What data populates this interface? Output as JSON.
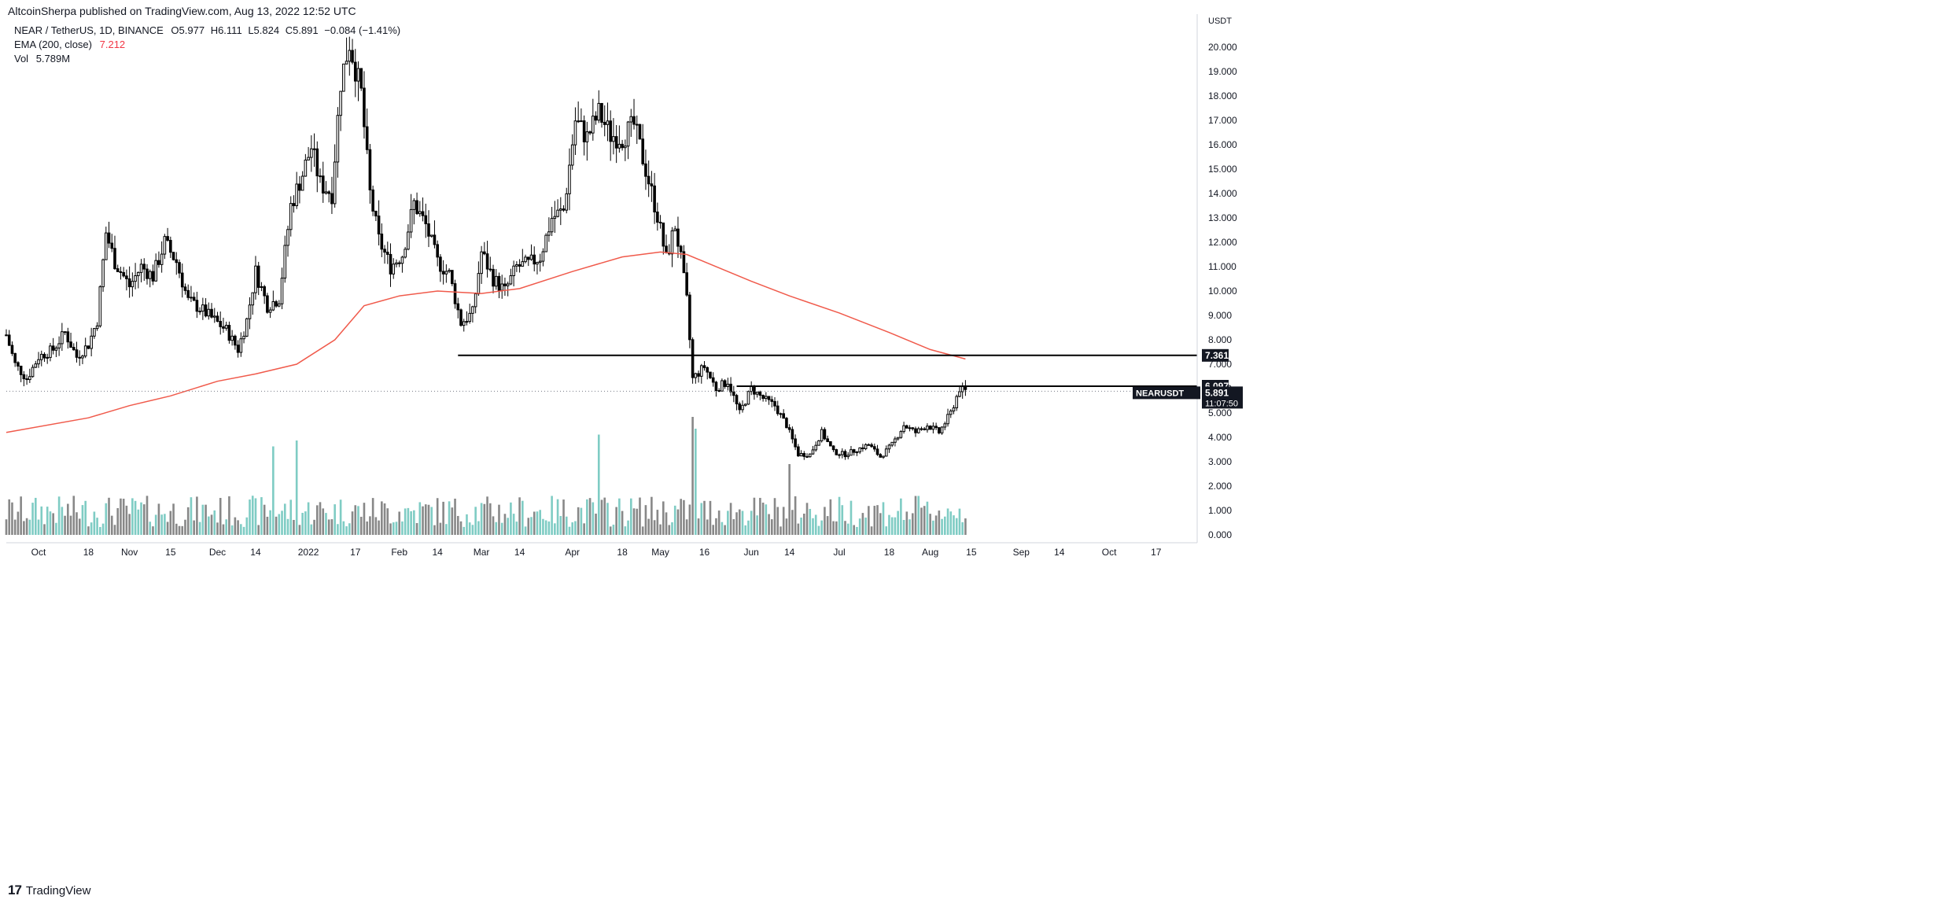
{
  "header": {
    "publisher": "AltcoinSherpa published on TradingView.com, Aug 13, 2022 12:52 UTC"
  },
  "legend": {
    "symbol": "NEAR / TetherUS, 1D, BINANCE",
    "ohlc": {
      "o_label": "O",
      "o": "5.977",
      "h_label": "H",
      "h": "6.111",
      "l_label": "L",
      "l": "5.824",
      "c_label": "C",
      "c": "5.891",
      "change": "−0.084 (−1.41%)"
    },
    "ema_label": "EMA (200, close)",
    "ema_value": "7.212",
    "vol_label": "Vol",
    "vol_value": "5.789M"
  },
  "footer": {
    "brand": "TradingView",
    "logo": "17"
  },
  "colors": {
    "ema": "#f05a4b",
    "vol_up": "#7fccc4",
    "vol_down": "#888888",
    "candle": "#000000",
    "bg": "#ffffff",
    "axis_text": "#131722"
  },
  "chart_data": {
    "type": "candlestick",
    "currency": "USDT",
    "y_scale": "log",
    "ylim": [
      0,
      21
    ],
    "y_ticks": [
      "20.000",
      "19.000",
      "18.000",
      "17.000",
      "16.000",
      "15.000",
      "14.000",
      "13.000",
      "12.000",
      "11.000",
      "10.000",
      "9.000",
      "8.000",
      "7.000",
      "6.000",
      "5.000",
      "4.000",
      "3.000",
      "2.000",
      "1.000",
      "0.000"
    ],
    "y_tick_values": [
      20,
      19,
      18,
      17,
      16,
      15,
      14,
      13,
      12,
      11,
      10,
      9,
      8,
      7,
      6,
      5,
      4,
      3,
      2,
      1,
      0
    ],
    "x_ticks": [
      {
        "label": "Oct",
        "date": "2021-10-01"
      },
      {
        "label": "18",
        "date": "2021-10-18"
      },
      {
        "label": "Nov",
        "date": "2021-11-01"
      },
      {
        "label": "15",
        "date": "2021-11-15"
      },
      {
        "label": "Dec",
        "date": "2021-12-01"
      },
      {
        "label": "14",
        "date": "2021-12-14"
      },
      {
        "label": "2022",
        "date": "2022-01-01"
      },
      {
        "label": "17",
        "date": "2022-01-17"
      },
      {
        "label": "Feb",
        "date": "2022-02-01"
      },
      {
        "label": "14",
        "date": "2022-02-14"
      },
      {
        "label": "Mar",
        "date": "2022-03-01"
      },
      {
        "label": "14",
        "date": "2022-03-14"
      },
      {
        "label": "Apr",
        "date": "2022-04-01"
      },
      {
        "label": "18",
        "date": "2022-04-18"
      },
      {
        "label": "May",
        "date": "2022-05-01"
      },
      {
        "label": "16",
        "date": "2022-05-16"
      },
      {
        "label": "Jun",
        "date": "2022-06-01"
      },
      {
        "label": "14",
        "date": "2022-06-14"
      },
      {
        "label": "Jul",
        "date": "2022-07-01"
      },
      {
        "label": "18",
        "date": "2022-07-18"
      },
      {
        "label": "Aug",
        "date": "2022-08-01"
      },
      {
        "label": "15",
        "date": "2022-08-15"
      },
      {
        "label": "Sep",
        "date": "2022-09-01"
      },
      {
        "label": "14",
        "date": "2022-09-14"
      },
      {
        "label": "Oct",
        "date": "2022-10-01"
      },
      {
        "label": "17",
        "date": "2022-10-17"
      }
    ],
    "price_path": [
      [
        "2021-09-20",
        8.2
      ],
      [
        "2021-09-23",
        7.0
      ],
      [
        "2021-09-27",
        6.4
      ],
      [
        "2021-10-01",
        7.3
      ],
      [
        "2021-10-06",
        7.6
      ],
      [
        "2021-10-10",
        8.3
      ],
      [
        "2021-10-14",
        7.3
      ],
      [
        "2021-10-18",
        7.8
      ],
      [
        "2021-10-21",
        8.8
      ],
      [
        "2021-10-24",
        12.4
      ],
      [
        "2021-10-27",
        11.2
      ],
      [
        "2021-11-01",
        10.2
      ],
      [
        "2021-11-05",
        11.0
      ],
      [
        "2021-11-09",
        10.6
      ],
      [
        "2021-11-13",
        12.0
      ],
      [
        "2021-11-17",
        11.2
      ],
      [
        "2021-11-21",
        9.6
      ],
      [
        "2021-11-25",
        9.3
      ],
      [
        "2021-11-30",
        8.8
      ],
      [
        "2021-12-04",
        8.4
      ],
      [
        "2021-12-08",
        7.6
      ],
      [
        "2021-12-11",
        8.8
      ],
      [
        "2021-12-14",
        10.8
      ],
      [
        "2021-12-18",
        9.4
      ],
      [
        "2021-12-22",
        9.7
      ],
      [
        "2021-12-26",
        13.5
      ],
      [
        "2021-12-30",
        14.8
      ],
      [
        "2022-01-02",
        15.9
      ],
      [
        "2022-01-05",
        14.4
      ],
      [
        "2022-01-09",
        14.0
      ],
      [
        "2022-01-12",
        18.6
      ],
      [
        "2022-01-15",
        20.2
      ],
      [
        "2022-01-19",
        18.1
      ],
      [
        "2022-01-22",
        14.0
      ],
      [
        "2022-01-25",
        12.1
      ],
      [
        "2022-01-29",
        11.0
      ],
      [
        "2022-02-02",
        11.5
      ],
      [
        "2022-02-06",
        13.6
      ],
      [
        "2022-02-10",
        12.7
      ],
      [
        "2022-02-14",
        11.2
      ],
      [
        "2022-02-18",
        10.7
      ],
      [
        "2022-02-22",
        8.7
      ],
      [
        "2022-02-26",
        9.1
      ],
      [
        "2022-03-01",
        11.6
      ],
      [
        "2022-03-05",
        10.5
      ],
      [
        "2022-03-09",
        10.0
      ],
      [
        "2022-03-13",
        11.0
      ],
      [
        "2022-03-17",
        11.1
      ],
      [
        "2022-03-21",
        11.4
      ],
      [
        "2022-03-25",
        13.0
      ],
      [
        "2022-03-29",
        13.3
      ],
      [
        "2022-04-02",
        17.0
      ],
      [
        "2022-04-06",
        16.3
      ],
      [
        "2022-04-10",
        17.3
      ],
      [
        "2022-04-14",
        16.4
      ],
      [
        "2022-04-18",
        16.3
      ],
      [
        "2022-04-22",
        16.8
      ],
      [
        "2022-04-26",
        15.0
      ],
      [
        "2022-04-30",
        13.1
      ],
      [
        "2022-05-03",
        11.3
      ],
      [
        "2022-05-06",
        12.7
      ],
      [
        "2022-05-08",
        11.3
      ],
      [
        "2022-05-10",
        9.6
      ],
      [
        "2022-05-12",
        6.4
      ],
      [
        "2022-05-16",
        6.9
      ],
      [
        "2022-05-20",
        6.0
      ],
      [
        "2022-05-24",
        6.3
      ],
      [
        "2022-05-28",
        5.0
      ],
      [
        "2022-06-01",
        6.0
      ],
      [
        "2022-06-05",
        5.6
      ],
      [
        "2022-06-09",
        5.3
      ],
      [
        "2022-06-13",
        4.5
      ],
      [
        "2022-06-17",
        3.3
      ],
      [
        "2022-06-21",
        3.3
      ],
      [
        "2022-06-25",
        4.2
      ],
      [
        "2022-06-29",
        3.4
      ],
      [
        "2022-07-03",
        3.3
      ],
      [
        "2022-07-07",
        3.5
      ],
      [
        "2022-07-11",
        3.7
      ],
      [
        "2022-07-15",
        3.2
      ],
      [
        "2022-07-19",
        3.7
      ],
      [
        "2022-07-23",
        4.5
      ],
      [
        "2022-07-27",
        4.2
      ],
      [
        "2022-07-31",
        4.5
      ],
      [
        "2022-08-04",
        4.2
      ],
      [
        "2022-08-08",
        5.0
      ],
      [
        "2022-08-11",
        6.0
      ],
      [
        "2022-08-13",
        5.891
      ]
    ],
    "ema_path": [
      [
        "2021-09-20",
        4.2
      ],
      [
        "2021-10-18",
        4.8
      ],
      [
        "2021-11-01",
        5.3
      ],
      [
        "2021-11-15",
        5.7
      ],
      [
        "2021-12-01",
        6.3
      ],
      [
        "2021-12-14",
        6.6
      ],
      [
        "2021-12-28",
        7.0
      ],
      [
        "2022-01-10",
        8.0
      ],
      [
        "2022-01-20",
        9.4
      ],
      [
        "2022-02-01",
        9.8
      ],
      [
        "2022-02-14",
        10.0
      ],
      [
        "2022-03-01",
        9.9
      ],
      [
        "2022-03-14",
        10.1
      ],
      [
        "2022-04-01",
        10.8
      ],
      [
        "2022-04-18",
        11.4
      ],
      [
        "2022-05-01",
        11.6
      ],
      [
        "2022-05-10",
        11.5
      ],
      [
        "2022-05-16",
        11.2
      ],
      [
        "2022-06-01",
        10.4
      ],
      [
        "2022-06-14",
        9.8
      ],
      [
        "2022-07-01",
        9.1
      ],
      [
        "2022-07-18",
        8.3
      ],
      [
        "2022-08-01",
        7.6
      ],
      [
        "2022-08-13",
        7.212
      ]
    ],
    "volume": {
      "note": "relative volume bars",
      "spikes": [
        [
          "2021-12-20",
          0.75
        ],
        [
          "2021-12-28",
          0.8
        ],
        [
          "2022-04-10",
          0.85
        ],
        [
          "2022-05-12",
          1.0
        ],
        [
          "2022-05-13",
          0.9
        ],
        [
          "2022-06-14",
          0.6
        ]
      ]
    },
    "horizontal_lines": [
      {
        "start": "2022-02-21",
        "value": 7.361,
        "label": "7.361"
      },
      {
        "start": "2022-05-27",
        "value": 6.097,
        "label": "6.097"
      }
    ],
    "current_price": {
      "symbol": "NEARUSDT",
      "value": "5.891",
      "countdown": "11:07:50"
    },
    "x_start": "2021-09-20",
    "x_end": "2022-10-31"
  }
}
